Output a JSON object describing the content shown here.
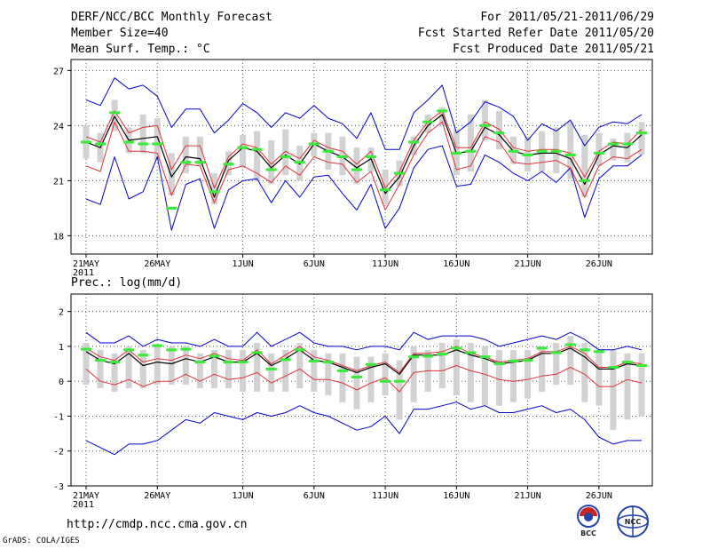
{
  "header": {
    "left1": "DERF/NCC/BCC Monthly Forecast",
    "left2": "Member Size=40",
    "left3": "Mean Surf. Temp.: °C",
    "right1": "For 2011/05/21-2011/06/29",
    "right2": "Fcst Started Refer Date 2011/05/20",
    "right3": "Fcst Produced Date 2011/05/21"
  },
  "footer": {
    "url": "http://cmdp.ncc.cma.gov.cn",
    "credit": "GrADS: COLA/IGES",
    "logo1_text": "BCC",
    "logo2_text": "NCC"
  },
  "colors": {
    "mean": "#000000",
    "spread": "#e0303a",
    "envelope": "#0000cc",
    "box": "#d2d2d2",
    "obs": "#33ee33"
  },
  "chart_data": [
    {
      "type": "line",
      "title": "Mean Surf. Temp.: °C",
      "x_ticks": [
        "21MAY",
        "26MAY",
        "1JUN",
        "6JUN",
        "11JUN",
        "16JUN",
        "21JUN",
        "26JUN"
      ],
      "x_tick_index": [
        0,
        5,
        11,
        16,
        21,
        26,
        31,
        36
      ],
      "x_year_label": "2011",
      "ylim": [
        17,
        27.6
      ],
      "yticks": [
        18,
        21,
        24,
        27
      ],
      "series": [
        {
          "name": "ensemble mean",
          "values": [
            23.1,
            22.8,
            24.5,
            23.2,
            23.3,
            23.4,
            21.2,
            22.3,
            22.2,
            20.1,
            22.1,
            22.8,
            22.6,
            21.7,
            22.4,
            21.9,
            23.0,
            22.6,
            22.3,
            21.7,
            22.2,
            20.3,
            21.2,
            22.9,
            24.0,
            24.6,
            22.5,
            22.6,
            23.9,
            23.5,
            22.6,
            22.4,
            22.5,
            22.5,
            22.2,
            20.8,
            22.4,
            22.9,
            22.8,
            23.5
          ]
        },
        {
          "name": "mean + sd",
          "values": [
            23.4,
            23.1,
            24.8,
            23.6,
            23.9,
            24.0,
            21.6,
            22.9,
            22.9,
            20.6,
            22.3,
            23.0,
            22.8,
            21.9,
            22.6,
            22.2,
            23.2,
            22.8,
            22.6,
            21.9,
            22.6,
            20.6,
            21.5,
            23.2,
            24.2,
            24.8,
            22.8,
            22.8,
            24.2,
            23.8,
            22.8,
            22.6,
            22.7,
            22.7,
            22.5,
            21.2,
            22.6,
            23.1,
            23.0,
            23.8
          ]
        },
        {
          "name": "mean - sd",
          "values": [
            21.8,
            21.5,
            24.2,
            22.6,
            22.6,
            22.5,
            20.2,
            21.9,
            21.8,
            19.8,
            21.6,
            21.8,
            21.4,
            20.9,
            21.8,
            21.3,
            22.3,
            22.0,
            21.9,
            20.9,
            21.5,
            19.4,
            20.8,
            22.4,
            23.6,
            24.2,
            21.6,
            21.8,
            23.4,
            23.1,
            22.0,
            21.9,
            22.0,
            22.1,
            21.7,
            20.1,
            21.8,
            22.3,
            22.2,
            22.7
          ]
        },
        {
          "name": "ensemble max",
          "values": [
            25.4,
            25.1,
            26.6,
            26.0,
            26.2,
            25.6,
            23.9,
            24.9,
            24.9,
            23.6,
            24.3,
            25.2,
            24.7,
            23.9,
            24.7,
            24.4,
            25.1,
            24.4,
            24.1,
            23.3,
            24.7,
            22.7,
            22.7,
            24.7,
            25.4,
            26.2,
            23.6,
            24.2,
            25.3,
            25.0,
            24.5,
            23.2,
            24.1,
            23.7,
            24.3,
            22.9,
            23.9,
            24.2,
            24.1,
            24.6
          ]
        },
        {
          "name": "ensemble min",
          "values": [
            20.0,
            19.7,
            22.3,
            20.0,
            20.4,
            22.3,
            18.3,
            20.8,
            21.1,
            18.4,
            20.5,
            21.0,
            21.1,
            19.8,
            21.0,
            20.1,
            21.2,
            21.3,
            20.3,
            19.4,
            20.8,
            18.4,
            19.5,
            21.7,
            22.7,
            22.9,
            20.7,
            20.8,
            22.4,
            22.0,
            21.4,
            21.0,
            21.5,
            20.9,
            21.7,
            19.0,
            21.1,
            21.8,
            21.8,
            22.4
          ]
        },
        {
          "name": "box upper",
          "values": [
            24.0,
            23.6,
            25.4,
            23.9,
            24.6,
            24.4,
            22.5,
            23.4,
            23.4,
            21.4,
            22.6,
            23.5,
            23.7,
            23.2,
            23.8,
            22.9,
            23.6,
            23.6,
            23.4,
            22.8,
            22.8,
            21.6,
            22.1,
            23.4,
            24.6,
            25.0,
            23.8,
            24.6,
            25.4,
            24.8,
            23.4,
            23.4,
            23.7,
            23.9,
            24.2,
            23.5,
            23.6,
            23.3,
            23.6,
            24.2
          ]
        },
        {
          "name": "box lower",
          "values": [
            22.2,
            22.0,
            23.7,
            22.5,
            22.5,
            22.1,
            20.2,
            21.4,
            21.8,
            19.7,
            21.3,
            21.7,
            21.0,
            20.8,
            21.3,
            21.0,
            22.3,
            21.6,
            21.3,
            20.8,
            21.5,
            19.7,
            20.7,
            22.4,
            23.6,
            24.0,
            21.3,
            21.5,
            23.2,
            22.7,
            21.9,
            21.5,
            21.5,
            21.4,
            21.1,
            20.1,
            21.8,
            22.1,
            22.0,
            22.4
          ]
        },
        {
          "name": "observed",
          "values": [
            23.1,
            23.0,
            24.7,
            23.1,
            23.0,
            23.0,
            19.5,
            22.0,
            22.0,
            20.4,
            21.9,
            22.8,
            22.7,
            21.6,
            22.3,
            22.0,
            23.0,
            22.6,
            22.3,
            21.6,
            22.3,
            20.5,
            21.4,
            23.1,
            24.2,
            24.8,
            22.5,
            22.6,
            24.0,
            23.6,
            22.6,
            22.4,
            22.6,
            22.6,
            22.4,
            21.0,
            22.5,
            23.0,
            23.0,
            23.6
          ]
        }
      ]
    },
    {
      "type": "line",
      "title": "Prec.: log(mm/d)",
      "x_ticks": [
        "21MAY",
        "26MAY",
        "1JUN",
        "6JUN",
        "11JUN",
        "16JUN",
        "21JUN",
        "26JUN"
      ],
      "x_tick_index": [
        0,
        5,
        11,
        16,
        21,
        26,
        31,
        36
      ],
      "x_year_label": "2011",
      "ylim": [
        -3,
        2.5
      ],
      "yticks": [
        -3,
        -2,
        -1,
        0,
        1,
        2
      ],
      "series": [
        {
          "name": "ensemble mean",
          "values": [
            0.85,
            0.6,
            0.5,
            0.8,
            0.45,
            0.55,
            0.5,
            0.65,
            0.55,
            0.7,
            0.55,
            0.55,
            0.8,
            0.45,
            0.65,
            0.9,
            0.6,
            0.55,
            0.4,
            0.25,
            0.4,
            0.5,
            0.2,
            0.75,
            0.75,
            0.75,
            0.9,
            0.75,
            0.65,
            0.5,
            0.55,
            0.6,
            0.8,
            0.8,
            0.95,
            0.7,
            0.35,
            0.35,
            0.5,
            0.45
          ]
        },
        {
          "name": "mean + sd",
          "values": [
            0.95,
            0.7,
            0.6,
            0.9,
            0.55,
            0.65,
            0.6,
            0.75,
            0.65,
            0.8,
            0.65,
            0.6,
            0.9,
            0.5,
            0.75,
            1.0,
            0.7,
            0.6,
            0.45,
            0.3,
            0.45,
            0.55,
            0.25,
            0.8,
            0.8,
            0.85,
            1.0,
            0.8,
            0.7,
            0.55,
            0.6,
            0.65,
            0.85,
            0.85,
            1.0,
            0.8,
            0.4,
            0.4,
            0.55,
            0.5
          ]
        },
        {
          "name": "mean - sd",
          "values": [
            0.35,
            0.0,
            -0.1,
            0.05,
            -0.15,
            0.0,
            0.0,
            0.2,
            0.0,
            0.2,
            0.05,
            0.1,
            0.25,
            -0.05,
            0.15,
            0.35,
            0.05,
            0.05,
            -0.05,
            -0.25,
            -0.05,
            0.1,
            -0.3,
            0.25,
            0.3,
            0.3,
            0.45,
            0.3,
            0.2,
            0.05,
            0.0,
            0.05,
            0.15,
            0.2,
            0.4,
            0.2,
            -0.15,
            -0.15,
            0.05,
            -0.05
          ]
        },
        {
          "name": "ensemble max",
          "values": [
            1.4,
            1.1,
            1.1,
            1.3,
            1.0,
            1.2,
            1.1,
            1.1,
            1.0,
            1.2,
            1.0,
            1.0,
            1.4,
            1.0,
            1.2,
            1.4,
            1.1,
            1.0,
            1.0,
            0.9,
            1.0,
            1.0,
            0.9,
            1.4,
            1.2,
            1.3,
            1.3,
            1.3,
            1.2,
            1.0,
            1.1,
            1.2,
            1.3,
            1.2,
            1.4,
            1.2,
            0.9,
            0.9,
            1.0,
            0.9
          ]
        },
        {
          "name": "ensemble min",
          "values": [
            -1.7,
            -1.9,
            -2.1,
            -1.8,
            -1.8,
            -1.7,
            -1.4,
            -1.1,
            -1.2,
            -0.9,
            -1.0,
            -1.1,
            -0.9,
            -1.0,
            -0.9,
            -0.7,
            -0.9,
            -1.0,
            -1.2,
            -1.4,
            -1.3,
            -1.0,
            -1.5,
            -0.8,
            -0.8,
            -0.7,
            -0.6,
            -0.8,
            -0.7,
            -0.9,
            -0.9,
            -0.8,
            -0.7,
            -0.9,
            -0.8,
            -1.1,
            -1.6,
            -1.8,
            -1.7,
            -1.7
          ]
        },
        {
          "name": "box upper",
          "values": [
            1.1,
            0.9,
            0.8,
            1.0,
            0.9,
            1.0,
            1.0,
            1.0,
            0.8,
            0.9,
            0.9,
            0.9,
            1.1,
            0.8,
            0.9,
            1.1,
            0.9,
            0.8,
            0.8,
            0.7,
            0.7,
            0.8,
            0.6,
            1.0,
            0.9,
            1.1,
            1.2,
            1.1,
            1.0,
            0.9,
            0.9,
            0.9,
            1.0,
            1.1,
            1.3,
            1.1,
            0.9,
            0.9,
            0.8,
            0.8
          ]
        },
        {
          "name": "box lower",
          "values": [
            -0.1,
            -0.2,
            -0.3,
            -0.2,
            -0.2,
            -0.1,
            -0.1,
            -0.1,
            -0.2,
            -0.2,
            -0.2,
            -0.3,
            -0.3,
            -0.3,
            -0.3,
            -0.2,
            -0.3,
            -0.4,
            -0.6,
            -0.8,
            -0.6,
            -0.4,
            -1.1,
            -0.6,
            -0.3,
            -0.2,
            -0.4,
            -0.6,
            -0.7,
            -0.7,
            -0.6,
            -0.5,
            -0.3,
            -0.1,
            -0.1,
            -0.6,
            -0.7,
            -1.4,
            -1.1,
            -1.0
          ]
        },
        {
          "name": "observed",
          "values": [
            0.92,
            0.6,
            0.55,
            0.9,
            0.75,
            1.02,
            0.9,
            0.92,
            0.55,
            0.72,
            0.55,
            0.55,
            0.82,
            0.35,
            0.62,
            0.9,
            0.58,
            0.55,
            0.3,
            0.12,
            0.48,
            0.0,
            0.0,
            0.7,
            0.72,
            0.78,
            0.95,
            0.82,
            0.7,
            0.5,
            0.58,
            0.6,
            0.95,
            0.82,
            1.05,
            0.9,
            0.85,
            0.4,
            0.55,
            0.45
          ]
        }
      ]
    }
  ]
}
